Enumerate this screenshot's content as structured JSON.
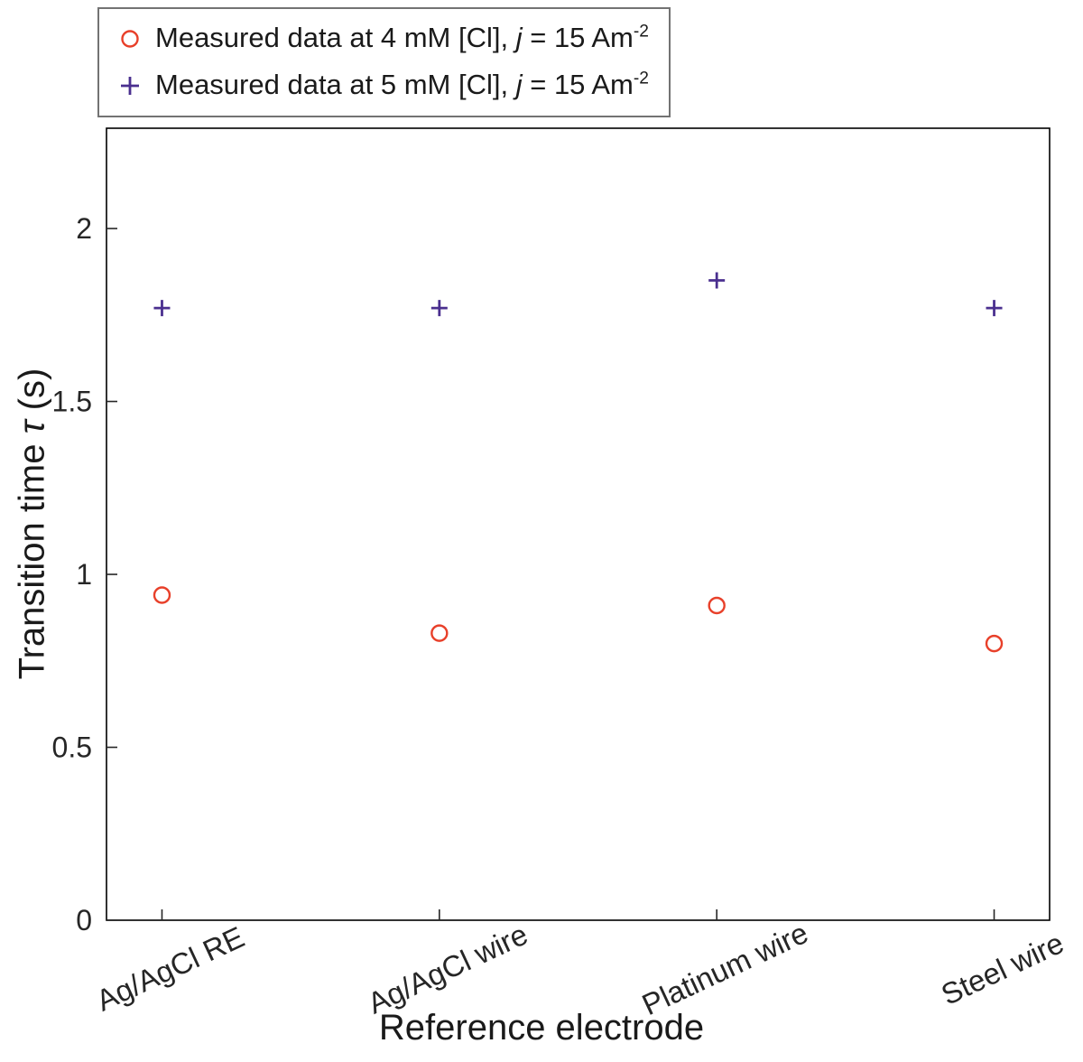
{
  "figure": {
    "background": "#ffffff",
    "frame_color": "#000000",
    "tick_color": "#262626"
  },
  "legend": {
    "items": [
      {
        "marker": "circle",
        "color": "#e8402a",
        "prefix": "Measured data at 4 mM [Cl], ",
        "italic": "j",
        "mid": " = 15 Am",
        "sup": "-2"
      },
      {
        "marker": "plus",
        "color": "#4a2f8f",
        "prefix": "Measured data at 5 mM [Cl], ",
        "italic": "j",
        "mid": " = 15 Am",
        "sup": "-2"
      }
    ]
  },
  "axes": {
    "xlabel": "Reference electrode",
    "ylabel_prefix": "Transition time ",
    "ylabel_tau": "τ",
    "ylabel_suffix": " (s)"
  },
  "chart_data": {
    "type": "scatter",
    "title": "",
    "xlabel": "Reference electrode",
    "ylabel": "Transition time τ (s)",
    "categories": [
      "Ag/AgCl RE",
      "Ag/AgCl wire",
      "Platinum wire",
      "Steel wire"
    ],
    "series": [
      {
        "name": "Measured data at 4 mM [Cl], j = 15 Am⁻²",
        "marker": "circle",
        "color": "#e8402a",
        "values": [
          0.94,
          0.83,
          0.91,
          0.8
        ]
      },
      {
        "name": "Measured data at 5 mM [Cl], j = 15 Am⁻²",
        "marker": "plus",
        "color": "#4a2f8f",
        "values": [
          1.77,
          1.77,
          1.85,
          1.77
        ]
      }
    ],
    "ylim": [
      0,
      2.29
    ],
    "yticks": [
      0,
      0.5,
      1,
      1.5,
      2
    ],
    "grid": false,
    "legend_position": "top-left-outside"
  }
}
